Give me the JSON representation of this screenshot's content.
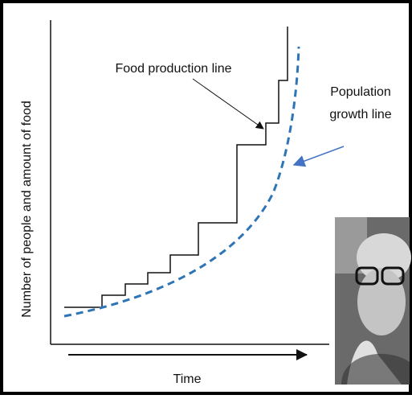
{
  "y_axis_label": "Number of people and amount of food",
  "x_axis_label": "Time",
  "annotations": {
    "food": "Food production line",
    "population": [
      "Population",
      "growth line"
    ]
  }
}
